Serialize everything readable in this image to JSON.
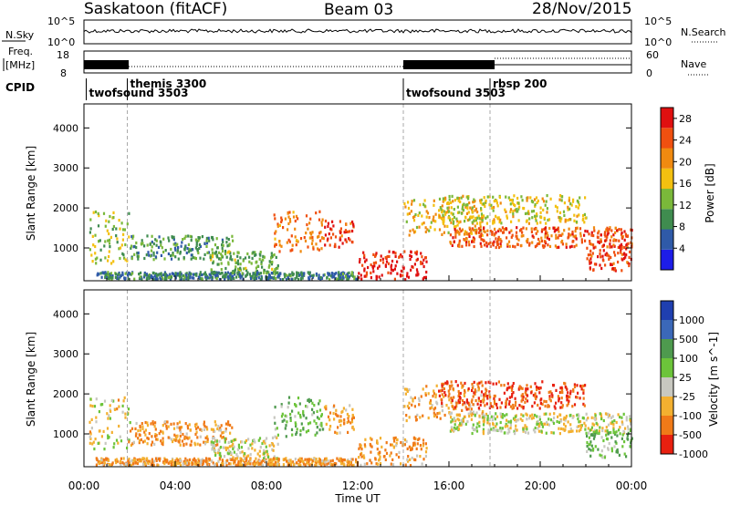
{
  "header": {
    "station": "Saskatoon (fitACF)",
    "beam": "Beam 03",
    "date": "28/Nov/2015"
  },
  "panels": {
    "nsky_label": "N.Sky",
    "nsearch_label": "N.Search",
    "nsky_ticks": [
      "10^5",
      "10^0"
    ],
    "nsearch_ticks": [
      "10^5",
      "10^0"
    ],
    "freq_label_1": "Freq.",
    "freq_label_2": "[MHz]",
    "freq_ticks": [
      "18",
      "8"
    ],
    "nave_label": "Nave",
    "nave_ticks": [
      "60",
      "0"
    ],
    "cpid_label": "CPID",
    "cpid_modes": [
      {
        "name": "twofsound 3503",
        "start_h": 0.1
      },
      {
        "name": "themis 3300",
        "start_h": 1.9
      },
      {
        "name": "twofsound 3503",
        "start_h": 14.0
      },
      {
        "name": "rbsp 200",
        "start_h": 17.8
      }
    ]
  },
  "chart_data": [
    {
      "type": "heatmap",
      "title": "",
      "xlabel": "Time UT",
      "ylabel": "Slant Range [km]",
      "x_ticks": [
        "00:00",
        "04:00",
        "08:00",
        "12:00",
        "16:00",
        "20:00",
        "00:00"
      ],
      "xlim_hours": [
        0,
        24
      ],
      "ylim_km": [
        180,
        4600
      ],
      "y_ticks": [
        1000,
        2000,
        3000,
        4000
      ],
      "colorbar": {
        "label": "Power [dB]",
        "ticks": [
          4,
          8,
          12,
          16,
          20,
          24,
          28
        ],
        "range": [
          0,
          30
        ],
        "colors": [
          "#1d1de8",
          "#2f5aa8",
          "#3f8c4f",
          "#7ab83a",
          "#f3c010",
          "#f08a10",
          "#f05010",
          "#e01010"
        ]
      },
      "echo_regions": [
        {
          "t0": 0.2,
          "t1": 2.0,
          "r0": 600,
          "r1": 1900,
          "value": 14
        },
        {
          "t0": 2.0,
          "t1": 6.5,
          "r0": 700,
          "r1": 1300,
          "value": 10
        },
        {
          "t0": 5.5,
          "t1": 8.5,
          "r0": 350,
          "r1": 900,
          "value": 12
        },
        {
          "t0": 8.3,
          "t1": 10.5,
          "r0": 900,
          "r1": 1900,
          "value": 22
        },
        {
          "t0": 10.5,
          "t1": 11.8,
          "r0": 1000,
          "r1": 1700,
          "value": 26
        },
        {
          "t0": 12.0,
          "t1": 15.0,
          "r0": 200,
          "r1": 900,
          "value": 28
        },
        {
          "t0": 14.0,
          "t1": 17.5,
          "r0": 1300,
          "r1": 2200,
          "value": 18
        },
        {
          "t0": 16.0,
          "t1": 24.0,
          "r0": 1000,
          "r1": 1500,
          "value": 24
        },
        {
          "t0": 15.5,
          "t1": 22.0,
          "r0": 1600,
          "r1": 2300,
          "value": 16
        },
        {
          "t0": 22.0,
          "t1": 24.0,
          "r0": 400,
          "r1": 1100,
          "value": 26
        },
        {
          "t0": 0.5,
          "t1": 12.0,
          "r0": 200,
          "r1": 380,
          "value": 8
        }
      ]
    },
    {
      "type": "heatmap",
      "title": "",
      "xlabel": "Time UT",
      "ylabel": "Slant Range [km]",
      "x_ticks": [
        "00:00",
        "04:00",
        "08:00",
        "12:00",
        "16:00",
        "20:00",
        "00:00"
      ],
      "xlim_hours": [
        0,
        24
      ],
      "ylim_km": [
        180,
        4600
      ],
      "y_ticks": [
        1000,
        2000,
        3000,
        4000
      ],
      "colorbar": {
        "label": "Velocity [m s^-1]",
        "ticks": [
          1000,
          500,
          100,
          25,
          -25,
          -100,
          -500,
          -1000
        ],
        "colors": [
          "#1f3fb0",
          "#3b68b8",
          "#4e9a4e",
          "#6cc43a",
          "#c8c8c0",
          "#f3b030",
          "#f07a18",
          "#e82010"
        ]
      },
      "echo_regions": [
        {
          "t0": 0.2,
          "t1": 2.0,
          "r0": 600,
          "r1": 1900,
          "value": -25
        },
        {
          "t0": 2.0,
          "t1": 6.5,
          "r0": 700,
          "r1": 1300,
          "value": -100
        },
        {
          "t0": 5.5,
          "t1": 8.5,
          "r0": 350,
          "r1": 900,
          "value": 0
        },
        {
          "t0": 8.3,
          "t1": 10.5,
          "r0": 900,
          "r1": 1900,
          "value": 100
        },
        {
          "t0": 10.5,
          "t1": 11.8,
          "r0": 1000,
          "r1": 1700,
          "value": -100
        },
        {
          "t0": 12.0,
          "t1": 15.0,
          "r0": 200,
          "r1": 900,
          "value": -100
        },
        {
          "t0": 14.0,
          "t1": 17.5,
          "r0": 1300,
          "r1": 2200,
          "value": -100
        },
        {
          "t0": 16.0,
          "t1": 24.0,
          "r0": 1000,
          "r1": 1500,
          "value": 0
        },
        {
          "t0": 15.5,
          "t1": 22.0,
          "r0": 1600,
          "r1": 2300,
          "value": -500
        },
        {
          "t0": 22.0,
          "t1": 24.0,
          "r0": 400,
          "r1": 1100,
          "value": 100
        },
        {
          "t0": 0.5,
          "t1": 12.0,
          "r0": 200,
          "r1": 380,
          "value": -100
        }
      ]
    }
  ]
}
